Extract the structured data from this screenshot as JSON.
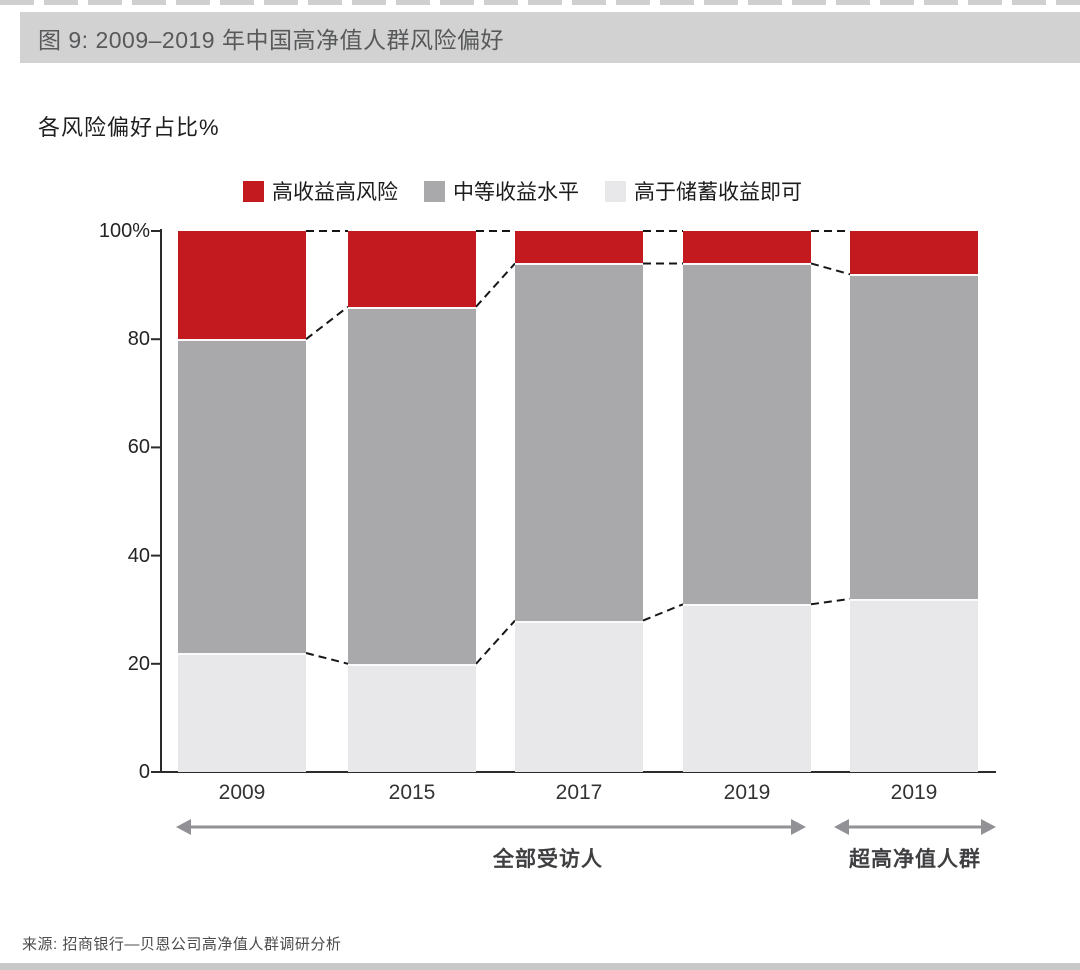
{
  "page": {
    "figure_title": "图 9: 2009–2019 年中国高净值人群风险偏好",
    "axis_title": "各风险偏好占比%",
    "source": "来源: 招商银行—贝恩公司高净值人群调研分析"
  },
  "chart_data": {
    "type": "bar",
    "subtype": "stacked-percent-column",
    "categories": [
      "2009",
      "2015",
      "2017",
      "2019",
      "2019"
    ],
    "series": [
      {
        "name": "高收益高风险",
        "color": "#c21a1e",
        "values": [
          20,
          14,
          6,
          6,
          8
        ]
      },
      {
        "name": "中等收益水平",
        "color": "#a9a8aa",
        "values": [
          58,
          66,
          66,
          63,
          60
        ]
      },
      {
        "name": "高于储蓄收益即可",
        "color": "#e8e8ea",
        "values": [
          22,
          20,
          28,
          31,
          32
        ]
      }
    ],
    "stack_order_top_to_bottom": [
      "高收益高风险",
      "中等收益水平",
      "高于储蓄收益即可"
    ],
    "title": "图 9: 2009–2019 年中国高净值人群风险偏好",
    "ylabel": "各风险偏好占比%",
    "xlabel": "",
    "ylim": [
      0,
      100
    ],
    "yticks": [
      "100%",
      "80",
      "60",
      "40",
      "20",
      "0"
    ],
    "grid": false,
    "legend_position": "top",
    "connector_lines": "dashed lines join segment boundaries of adjacent bars",
    "group_annotations": [
      {
        "label": "全部受访人",
        "bars": [
          0,
          3
        ]
      },
      {
        "label": "超高净值人群",
        "bars": [
          4,
          4
        ]
      }
    ]
  }
}
